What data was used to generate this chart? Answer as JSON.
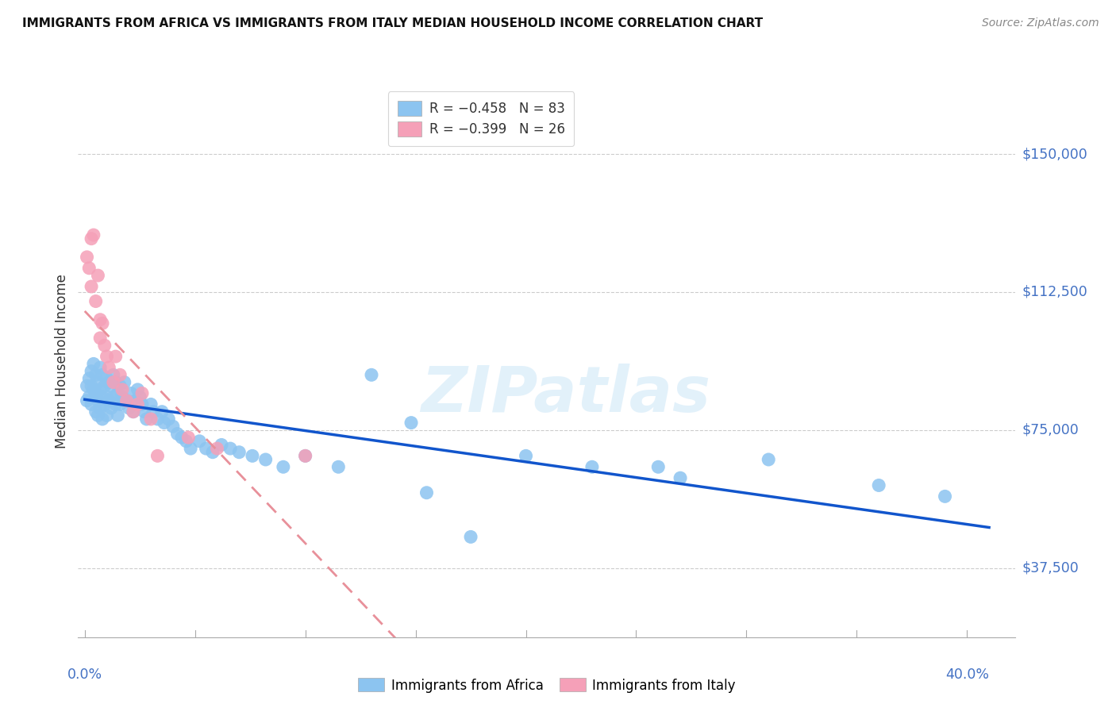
{
  "title": "IMMIGRANTS FROM AFRICA VS IMMIGRANTS FROM ITALY MEDIAN HOUSEHOLD INCOME CORRELATION CHART",
  "source": "Source: ZipAtlas.com",
  "ylabel": "Median Household Income",
  "ytick_labels": [
    "$150,000",
    "$112,500",
    "$75,000",
    "$37,500"
  ],
  "ytick_values": [
    150000,
    112500,
    75000,
    37500
  ],
  "ylim": [
    18750,
    168750
  ],
  "xlim": [
    -0.003,
    0.422
  ],
  "africa_color": "#8CC4F0",
  "italy_color": "#F5A0B8",
  "africa_line_color": "#1155CC",
  "italy_line_color": "#E8909A",
  "watermark": "ZIPatlas",
  "africa_x": [
    0.001,
    0.001,
    0.002,
    0.002,
    0.003,
    0.003,
    0.003,
    0.004,
    0.004,
    0.005,
    0.005,
    0.005,
    0.006,
    0.006,
    0.006,
    0.007,
    0.007,
    0.007,
    0.008,
    0.008,
    0.008,
    0.009,
    0.009,
    0.01,
    0.01,
    0.01,
    0.011,
    0.011,
    0.012,
    0.012,
    0.013,
    0.013,
    0.014,
    0.014,
    0.015,
    0.015,
    0.016,
    0.016,
    0.017,
    0.018,
    0.019,
    0.02,
    0.021,
    0.022,
    0.023,
    0.024,
    0.025,
    0.026,
    0.027,
    0.028,
    0.03,
    0.031,
    0.033,
    0.035,
    0.036,
    0.038,
    0.04,
    0.042,
    0.044,
    0.046,
    0.048,
    0.052,
    0.055,
    0.058,
    0.062,
    0.066,
    0.07,
    0.076,
    0.082,
    0.09,
    0.1,
    0.115,
    0.13,
    0.155,
    0.175,
    0.2,
    0.23,
    0.27,
    0.31,
    0.36,
    0.39,
    0.148,
    0.26
  ],
  "africa_y": [
    87000,
    83000,
    89000,
    84000,
    91000,
    87000,
    82000,
    93000,
    86000,
    90000,
    85000,
    80000,
    88000,
    83000,
    79000,
    92000,
    86000,
    81000,
    90000,
    84000,
    78000,
    87000,
    82000,
    89000,
    84000,
    79000,
    88000,
    83000,
    87000,
    81000,
    90000,
    84000,
    88000,
    82000,
    85000,
    79000,
    87000,
    82000,
    84000,
    88000,
    83000,
    81000,
    85000,
    80000,
    83000,
    86000,
    84000,
    82000,
    80000,
    78000,
    82000,
    80000,
    78000,
    80000,
    77000,
    78000,
    76000,
    74000,
    73000,
    72000,
    70000,
    72000,
    70000,
    69000,
    71000,
    70000,
    69000,
    68000,
    67000,
    65000,
    68000,
    65000,
    90000,
    58000,
    46000,
    68000,
    65000,
    62000,
    67000,
    60000,
    57000,
    77000,
    65000
  ],
  "italy_x": [
    0.001,
    0.002,
    0.003,
    0.003,
    0.004,
    0.005,
    0.006,
    0.007,
    0.007,
    0.008,
    0.009,
    0.01,
    0.011,
    0.013,
    0.014,
    0.016,
    0.017,
    0.019,
    0.022,
    0.024,
    0.026,
    0.03,
    0.033,
    0.06,
    0.1,
    0.047
  ],
  "italy_y": [
    122000,
    119000,
    127000,
    114000,
    128000,
    110000,
    117000,
    105000,
    100000,
    104000,
    98000,
    95000,
    92000,
    88000,
    95000,
    90000,
    86000,
    83000,
    80000,
    82000,
    85000,
    78000,
    68000,
    70000,
    68000,
    73000
  ]
}
